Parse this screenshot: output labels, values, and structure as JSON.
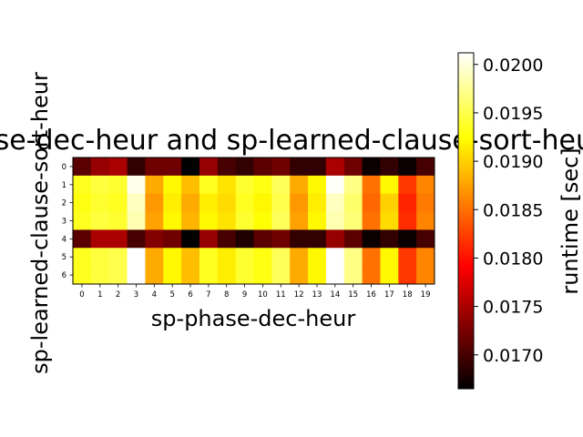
{
  "chart_data": {
    "type": "heatmap",
    "title": "sp-phase-dec-heur and sp-learned-clause-sort-heur",
    "xlabel": "sp-phase-dec-heur",
    "ylabel": "sp-learned-clause-sort-heur",
    "x_categories": [
      "0",
      "1",
      "2",
      "3",
      "4",
      "5",
      "6",
      "7",
      "8",
      "9",
      "10",
      "11",
      "12",
      "13",
      "14",
      "15",
      "16",
      "17",
      "18",
      "19"
    ],
    "y_categories": [
      "0",
      "1",
      "2",
      "3",
      "4",
      "5",
      "6"
    ],
    "values": [
      [
        0.0171,
        0.0174,
        0.0175,
        0.0169,
        0.0172,
        0.0172,
        0.0166,
        0.0174,
        0.017,
        0.0169,
        0.0171,
        0.0172,
        0.0169,
        0.0169,
        0.0175,
        0.0172,
        0.0167,
        0.0169,
        0.0167,
        0.017
      ],
      [
        0.01935,
        0.01945,
        0.0194,
        0.02005,
        0.0188,
        0.0192,
        0.0189,
        0.01935,
        0.0191,
        0.0194,
        0.0193,
        0.01955,
        0.0188,
        0.0192,
        0.0201,
        0.0197,
        0.0185,
        0.0192,
        0.0182,
        0.0186
      ],
      [
        0.0193,
        0.0194,
        0.01935,
        0.0199,
        0.0187,
        0.01915,
        0.0188,
        0.01915,
        0.01905,
        0.01935,
        0.0192,
        0.0195,
        0.0187,
        0.01915,
        0.0199,
        0.0196,
        0.01845,
        0.019,
        0.0181,
        0.01855
      ],
      [
        0.01935,
        0.01945,
        0.0194,
        0.01985,
        0.01875,
        0.0192,
        0.01885,
        0.0192,
        0.0191,
        0.0194,
        0.01925,
        0.01955,
        0.01875,
        0.0192,
        0.01985,
        0.01965,
        0.0185,
        0.01905,
        0.01815,
        0.0186
      ],
      [
        0.0171,
        0.0175,
        0.0175,
        0.017,
        0.0173,
        0.0172,
        0.0166,
        0.0174,
        0.017,
        0.0168,
        0.0171,
        0.0172,
        0.0169,
        0.0169,
        0.0174,
        0.0171,
        0.0167,
        0.0169,
        0.0167,
        0.017
      ],
      [
        0.01935,
        0.01945,
        0.0195,
        0.0202,
        0.0188,
        0.0192,
        0.0189,
        0.01935,
        0.01915,
        0.0194,
        0.0193,
        0.01955,
        0.0188,
        0.0192,
        0.02015,
        0.0197,
        0.0185,
        0.0192,
        0.0182,
        0.0186
      ],
      [
        0.01935,
        0.01945,
        0.0195,
        0.0202,
        0.0188,
        0.0192,
        0.0189,
        0.01935,
        0.01915,
        0.0194,
        0.0193,
        0.01955,
        0.0188,
        0.0192,
        0.02015,
        0.0197,
        0.0185,
        0.0192,
        0.0182,
        0.0186
      ]
    ],
    "colormap": "hot",
    "vmin": 0.01665,
    "vmax": 0.02012,
    "colorbar": {
      "label": "runtime [sec]",
      "ticks": [
        0.017,
        0.0175,
        0.018,
        0.0185,
        0.019,
        0.0195,
        0.02
      ],
      "tick_labels": [
        "0.0170",
        "0.0175",
        "0.0180",
        "0.0185",
        "0.0190",
        "0.0195",
        "0.0200"
      ]
    }
  }
}
